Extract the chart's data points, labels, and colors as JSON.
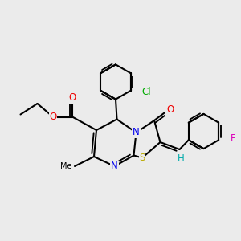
{
  "background_color": "#ebebeb",
  "atom_colors": {
    "N": "#0000ee",
    "O": "#ee0000",
    "S": "#bbaa00",
    "Cl": "#00aa00",
    "F": "#dd00bb",
    "H": "#00aaaa",
    "C": "#000000"
  },
  "bond_lw": 1.5,
  "fs": 8.0
}
